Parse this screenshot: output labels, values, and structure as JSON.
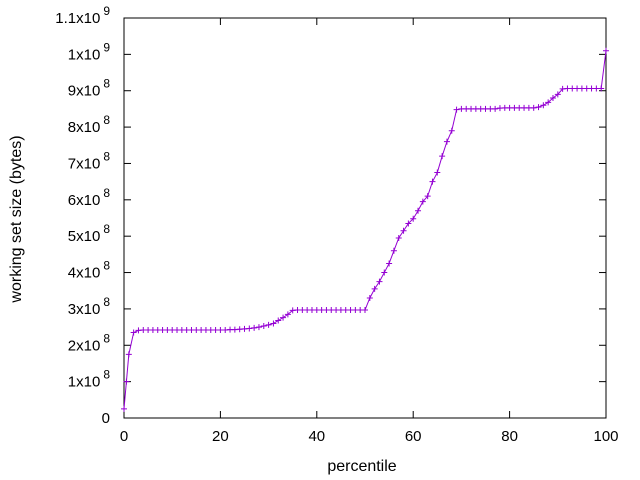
{
  "chart_data": {
    "type": "line",
    "xlabel": "percentile",
    "ylabel": "working set size (bytes)",
    "xlim": [
      0,
      100
    ],
    "ylim": [
      0,
      1100000000
    ],
    "grid": false,
    "legend": "none",
    "x_ticks": [
      {
        "value": 0,
        "label": "0"
      },
      {
        "value": 20,
        "label": "20"
      },
      {
        "value": 40,
        "label": "40"
      },
      {
        "value": 60,
        "label": "60"
      },
      {
        "value": 80,
        "label": "80"
      },
      {
        "value": 100,
        "label": "100"
      }
    ],
    "y_ticks": [
      {
        "value": 0,
        "mant": "0",
        "exp": ""
      },
      {
        "value": 100000000,
        "mant": "1x10",
        "exp": "8"
      },
      {
        "value": 200000000,
        "mant": "2x10",
        "exp": "8"
      },
      {
        "value": 300000000,
        "mant": "3x10",
        "exp": "8"
      },
      {
        "value": 400000000,
        "mant": "4x10",
        "exp": "8"
      },
      {
        "value": 500000000,
        "mant": "5x10",
        "exp": "8"
      },
      {
        "value": 600000000,
        "mant": "6x10",
        "exp": "8"
      },
      {
        "value": 700000000,
        "mant": "7x10",
        "exp": "8"
      },
      {
        "value": 800000000,
        "mant": "8x10",
        "exp": "8"
      },
      {
        "value": 900000000,
        "mant": "9x10",
        "exp": "8"
      },
      {
        "value": 1000000000,
        "mant": "1x10",
        "exp": "9"
      },
      {
        "value": 1100000000,
        "mant": "1.1x10",
        "exp": "9"
      }
    ],
    "series": [
      {
        "color": "#9400d3",
        "marker": "plus",
        "points": [
          [
            0,
            25000000
          ],
          [
            0.5,
            100000000
          ],
          [
            1,
            175000000
          ],
          [
            2,
            235000000
          ],
          [
            3,
            241000000
          ],
          [
            4,
            242000000
          ],
          [
            5,
            242000000
          ],
          [
            6,
            242000000
          ],
          [
            7,
            242000000
          ],
          [
            8,
            242000000
          ],
          [
            9,
            242000000
          ],
          [
            10,
            242000000
          ],
          [
            11,
            242000000
          ],
          [
            12,
            242000000
          ],
          [
            13,
            242000000
          ],
          [
            14,
            242000000
          ],
          [
            15,
            242000000
          ],
          [
            16,
            242000000
          ],
          [
            17,
            242000000
          ],
          [
            18,
            242000000
          ],
          [
            19,
            242000000
          ],
          [
            20,
            242000000
          ],
          [
            21,
            242000000
          ],
          [
            22,
            243000000
          ],
          [
            23,
            243000000
          ],
          [
            24,
            244000000
          ],
          [
            25,
            245000000
          ],
          [
            26,
            246000000
          ],
          [
            27,
            248000000
          ],
          [
            28,
            250000000
          ],
          [
            29,
            253000000
          ],
          [
            30,
            256000000
          ],
          [
            31,
            260000000
          ],
          [
            32,
            268000000
          ],
          [
            33,
            276000000
          ],
          [
            34,
            285000000
          ],
          [
            35,
            296000000
          ],
          [
            36,
            297000000
          ],
          [
            37,
            297000000
          ],
          [
            38,
            297000000
          ],
          [
            39,
            297000000
          ],
          [
            40,
            297000000
          ],
          [
            41,
            297000000
          ],
          [
            42,
            297000000
          ],
          [
            43,
            297000000
          ],
          [
            44,
            297000000
          ],
          [
            45,
            297000000
          ],
          [
            46,
            297000000
          ],
          [
            47,
            297000000
          ],
          [
            48,
            297000000
          ],
          [
            49,
            297000000
          ],
          [
            50,
            297000000
          ],
          [
            51,
            330000000
          ],
          [
            52,
            355000000
          ],
          [
            53,
            375000000
          ],
          [
            54,
            400000000
          ],
          [
            55,
            425000000
          ],
          [
            56,
            460000000
          ],
          [
            57,
            495000000
          ],
          [
            58,
            515000000
          ],
          [
            59,
            535000000
          ],
          [
            60,
            548000000
          ],
          [
            61,
            570000000
          ],
          [
            62,
            595000000
          ],
          [
            63,
            610000000
          ],
          [
            64,
            650000000
          ],
          [
            65,
            675000000
          ],
          [
            66,
            720000000
          ],
          [
            67,
            760000000
          ],
          [
            68,
            790000000
          ],
          [
            69,
            848000000
          ],
          [
            70,
            850000000
          ],
          [
            71,
            850000000
          ],
          [
            72,
            850000000
          ],
          [
            73,
            850000000
          ],
          [
            74,
            850000000
          ],
          [
            75,
            850000000
          ],
          [
            76,
            850000000
          ],
          [
            77,
            850000000
          ],
          [
            78,
            852000000
          ],
          [
            79,
            853000000
          ],
          [
            80,
            853000000
          ],
          [
            81,
            853000000
          ],
          [
            82,
            853000000
          ],
          [
            83,
            853000000
          ],
          [
            84,
            853000000
          ],
          [
            85,
            853000000
          ],
          [
            86,
            855000000
          ],
          [
            87,
            860000000
          ],
          [
            88,
            868000000
          ],
          [
            89,
            880000000
          ],
          [
            90,
            890000000
          ],
          [
            91,
            905000000
          ],
          [
            92,
            906000000
          ],
          [
            93,
            906000000
          ],
          [
            94,
            906000000
          ],
          [
            95,
            906000000
          ],
          [
            96,
            906000000
          ],
          [
            97,
            906000000
          ],
          [
            98,
            906000000
          ],
          [
            99,
            906000000
          ],
          [
            100,
            1010000000
          ]
        ]
      }
    ]
  }
}
